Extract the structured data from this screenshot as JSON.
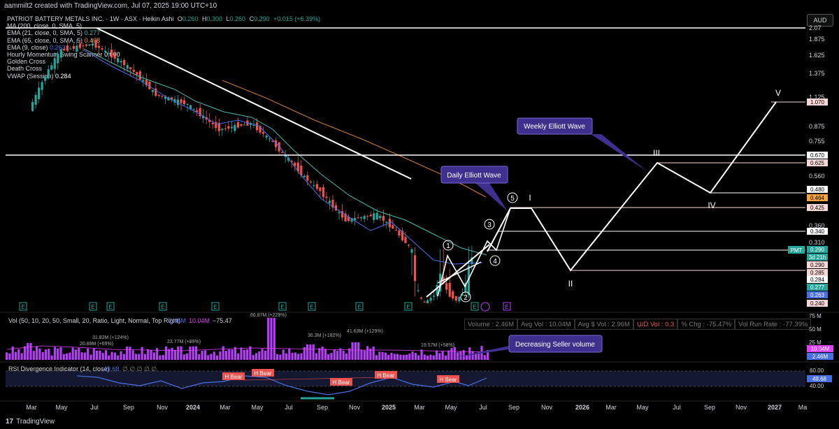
{
  "header": {
    "credit": "aammilt2 created with TradingView.com, Jul 07, 2025 19:00 UTC+10",
    "currency_button": "AUD"
  },
  "symbol": {
    "name": "PATRIOT BATTERY METALS INC. · 1W · ASX · Heikin Ashi",
    "open_label": "O",
    "open": "0.260",
    "high_label": "H",
    "high": "0.300",
    "low_label": "L",
    "low": "0.260",
    "close_label": "C",
    "close": "0.290",
    "change": "+0.015 (+6.39%)"
  },
  "indicators": [
    {
      "label": "MA (200, close, 0, SMA, 5)",
      "value": ""
    },
    {
      "label": "EMA (21, close, 0, SMA, 5)",
      "value": "0.277"
    },
    {
      "label": "EMA (65, close, 0, SMA, 5)",
      "value": "0.408"
    },
    {
      "label": "EMA (9, close)",
      "value": "0.263"
    },
    {
      "label": "Hourly Momentum Swing Scanner",
      "value": "0.000"
    },
    {
      "label": "Golden Cross",
      "value": ""
    },
    {
      "label": "Death Cross",
      "value": ""
    },
    {
      "label": "VWAP (Session)",
      "value": "0.284"
    }
  ],
  "annotations": {
    "daily_wave": "Daily Elliott Wave",
    "weekly_wave": "Weekly Elliott Wave",
    "seller_volume": "Decreasing Seller volume",
    "daily_labels": [
      "1",
      "2",
      "3",
      "4",
      "5"
    ],
    "weekly_labels": [
      "I",
      "II",
      "III",
      "IV",
      "V"
    ]
  },
  "price_axis": {
    "ticks": [
      "2.07",
      "1.875",
      "1.625",
      "1.375",
      "1.125",
      "0.875",
      "0.755",
      "0.560",
      "0.360",
      "0.310"
    ],
    "tags": [
      {
        "text": "1.070",
        "color": "#f8d7d7",
        "fg": "#000"
      },
      {
        "text": "0.670",
        "color": "#ffffff",
        "fg": "#000"
      },
      {
        "text": "0.625",
        "color": "#f8d7d7",
        "fg": "#000"
      },
      {
        "text": "0.480",
        "color": "#ffffff",
        "fg": "#000"
      },
      {
        "text": "0.464",
        "color": "#f7a23b",
        "fg": "#000"
      },
      {
        "text": "0.425",
        "color": "#f8d7d7",
        "fg": "#000"
      },
      {
        "text": "0.340",
        "color": "#ffffff",
        "fg": "#000"
      },
      {
        "text": "0.290",
        "color": "#26a69a",
        "fg": "#fff"
      },
      {
        "text": "3d 21h",
        "color": "#26a69a",
        "fg": "#fff"
      },
      {
        "text": "0.290",
        "color": "#f8d7d7",
        "fg": "#000"
      },
      {
        "text": "0.285",
        "color": "#f8d7d7",
        "fg": "#000"
      },
      {
        "text": "0.284",
        "color": "#ffffff",
        "fg": "#000"
      },
      {
        "text": "0.277",
        "color": "#26a69a",
        "fg": "#fff"
      },
      {
        "text": "0.263",
        "color": "#4a6fe3",
        "fg": "#fff"
      },
      {
        "text": "0.240",
        "color": "#f8d7d7",
        "fg": "#000"
      }
    ],
    "pmt_tag": "PMT"
  },
  "volume": {
    "legend_label": "Vol (50, 10, 20, 50, Small, 20, Ratio, Light, Normal, Top Right)",
    "legend_v1": "2.46M",
    "legend_v2": "10.04M",
    "legend_v3": "−75.47",
    "stats": [
      "Volume : 2.46M",
      "Avg Vol : 10.04M",
      "Avg $ Vol : 2.96M",
      "U/D Vol : 0.3",
      "% Chg : -75.47%",
      "Vol Run Rate : -77.39%"
    ],
    "axis_ticks": [
      "75 M",
      "50 M",
      "25 M"
    ],
    "axis_tags": [
      {
        "text": "10.04M",
        "color": "#e040fb"
      },
      {
        "text": "2.46M",
        "color": "#4a6fe3"
      }
    ],
    "peak_labels": [
      "20.89M (+69%)",
      "31.82M (+124%)",
      "23.77M (+89%)",
      "66.87M (+229%)",
      "36.3M (+182%)",
      "41.63M (+129%)",
      "19.57M (+58%)"
    ]
  },
  "rsi": {
    "legend_label": "RSI Divergence Indicator (14, close)",
    "legend_value": "49.68",
    "legend_symbols": "∅ ∅ ∅ ∅ ∅",
    "axis_ticks": [
      "60.00",
      "40.00"
    ],
    "axis_tag": "49.68",
    "bear_label": "H Bear"
  },
  "time_axis": [
    "Mar",
    "May",
    "Jul",
    "Sep",
    "Nov",
    "2024",
    "Mar",
    "May",
    "Jul",
    "Sep",
    "Nov",
    "2025",
    "Mar",
    "May",
    "Jul",
    "Sep",
    "Nov",
    "2026",
    "Mar",
    "May",
    "Jul",
    "Sep",
    "Nov",
    "2027",
    "Ma"
  ],
  "event_markers": {
    "earnings": "E",
    "dividend": "D"
  },
  "footer": {
    "logo": "TradingView"
  },
  "colors": {
    "bull": "#26a69a",
    "bear": "#ef5350",
    "ema9": "#4a6fe3",
    "ema21": "#4db6ac",
    "ema65": "#c77d3a",
    "volume_bar": "#b53ef7",
    "callout": "#3f2f8f"
  },
  "chart_data": {
    "type": "candlestick",
    "series_desc": "Weekly Heikin Ashi candles for PMT (ASX), early 2023 to Jul 2025, with Elliott Wave projection",
    "last": {
      "open": 0.26,
      "high": 0.3,
      "low": 0.26,
      "close": 0.29
    },
    "price_path": [
      [
        "2023-03",
        1.0
      ],
      [
        "2023-05",
        1.7
      ],
      [
        "2023-07",
        1.8
      ],
      [
        "2023-09",
        1.5
      ],
      [
        "2023-11",
        1.15
      ],
      [
        "2024-01",
        1.05
      ],
      [
        "2024-03",
        0.85
      ],
      [
        "2024-05",
        0.9
      ],
      [
        "2024-07",
        0.68
      ],
      [
        "2024-09",
        0.5
      ],
      [
        "2024-11",
        0.38
      ],
      [
        "2025-01",
        0.4
      ],
      [
        "2025-03",
        0.3
      ],
      [
        "2025-04",
        0.24
      ],
      [
        "2025-05",
        0.28
      ],
      [
        "2025-06",
        0.25
      ],
      [
        "2025-07",
        0.29
      ]
    ],
    "projection": {
      "daily_wave": [
        0.24,
        0.3,
        0.26,
        0.34,
        0.29,
        0.425
      ],
      "weekly_wave": [
        0.425,
        0.285,
        0.625,
        0.48,
        1.07
      ]
    },
    "horizontal_levels": [
      2.07,
      0.67,
      0.625,
      0.48,
      0.425,
      0.34,
      0.29,
      0.285
    ],
    "rsi_last": 49.68
  }
}
